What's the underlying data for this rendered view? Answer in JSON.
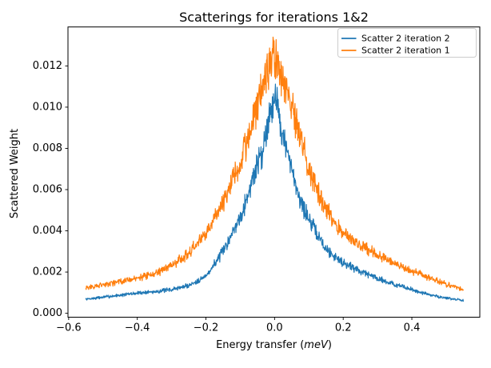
{
  "figure": {
    "title": "Scatterings for iterations 1&2",
    "xlabel_prefix": "Energy transfer (",
    "xlabel_unit_italic": "meV",
    "xlabel_suffix": ")",
    "ylabel": "Scattered Weight"
  },
  "colors": {
    "background": "#ffffff",
    "spine": "#000000",
    "tick_label": "#000000",
    "legend_border": "#cccccc",
    "legend_background": "#ffffff",
    "series_blue": "#1f77b4",
    "series_orange": "#ff7f0e"
  },
  "chart_data": {
    "type": "line",
    "title": "Scatterings for iterations 1&2",
    "xlabel": "Energy transfer (meV)",
    "ylabel": "Scattered Weight",
    "grid": false,
    "legend_position": "upper right",
    "xlim": [
      -0.602,
      0.598
    ],
    "ylim": [
      -0.00019,
      0.01389
    ],
    "xticks": [
      -0.6,
      -0.4,
      -0.2,
      0.0,
      0.2,
      0.4
    ],
    "xtick_labels": [
      "−0.6",
      "−0.4",
      "−0.2",
      "0.0",
      "0.2",
      "0.4"
    ],
    "yticks": [
      0.0,
      0.002,
      0.004,
      0.006,
      0.008,
      0.01,
      0.012
    ],
    "ytick_labels": [
      "0.000",
      "0.002",
      "0.004",
      "0.006",
      "0.008",
      "0.010",
      "0.012"
    ],
    "x_data_range": [
      -0.55,
      0.55
    ],
    "points_per_series": 1100,
    "noise": {
      "relative_amplitude": 0.11,
      "seed": 7
    },
    "series": [
      {
        "name": "Scatter 2 iteration 2",
        "color": "#1f77b4",
        "peak_value_approx": 0.0111,
        "anchors_x": [
          -0.55,
          -0.5,
          -0.45,
          -0.4,
          -0.35,
          -0.3,
          -0.25,
          -0.2,
          -0.15,
          -0.1,
          -0.075,
          -0.05,
          -0.035,
          -0.02,
          -0.01,
          0,
          0.01,
          0.02,
          0.035,
          0.05,
          0.075,
          0.1,
          0.15,
          0.2,
          0.25,
          0.3,
          0.35,
          0.4,
          0.45,
          0.5,
          0.55
        ],
        "anchors_y": [
          0.00068,
          0.00078,
          0.00088,
          0.00098,
          0.00105,
          0.00115,
          0.00135,
          0.0018,
          0.003,
          0.0047,
          0.00585,
          0.0073,
          0.0078,
          0.0093,
          0.01,
          0.0106,
          0.01,
          0.009,
          0.0079,
          0.0069,
          0.0055,
          0.00455,
          0.0031,
          0.00245,
          0.00205,
          0.0017,
          0.0014,
          0.00115,
          0.0009,
          0.00074,
          0.00062
        ]
      },
      {
        "name": "Scatter 2 iteration 1",
        "color": "#ff7f0e",
        "peak_value_approx": 0.0135,
        "anchors_x": [
          -0.55,
          -0.5,
          -0.45,
          -0.4,
          -0.35,
          -0.3,
          -0.25,
          -0.2,
          -0.15,
          -0.1,
          -0.075,
          -0.05,
          -0.035,
          -0.02,
          -0.01,
          0,
          0.01,
          0.02,
          0.035,
          0.05,
          0.075,
          0.1,
          0.15,
          0.2,
          0.25,
          0.3,
          0.35,
          0.4,
          0.45,
          0.5,
          0.55
        ],
        "anchors_y": [
          0.00125,
          0.00138,
          0.00152,
          0.0017,
          0.0019,
          0.0023,
          0.0029,
          0.0039,
          0.0054,
          0.0072,
          0.0086,
          0.0101,
          0.011,
          0.0119,
          0.0123,
          0.0125,
          0.0122,
          0.0115,
          0.0107,
          0.01,
          0.0086,
          0.0069,
          0.005,
          0.0039,
          0.00335,
          0.00285,
          0.0024,
          0.00208,
          0.00172,
          0.00142,
          0.00113
        ]
      }
    ]
  }
}
